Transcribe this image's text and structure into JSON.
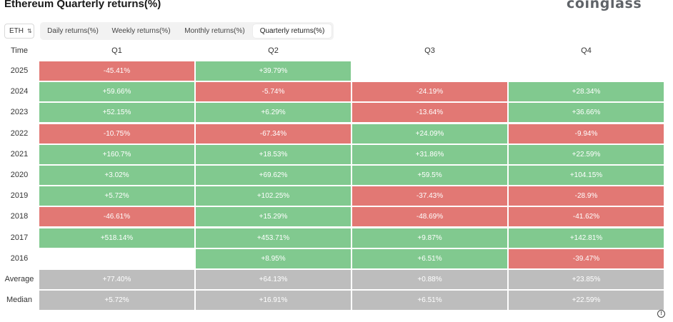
{
  "header": {
    "title": "Ethereum Quarterly returns(%)",
    "logo": "coinglass"
  },
  "controls": {
    "coin": "ETH",
    "tabs": [
      {
        "label": "Daily returns(%)",
        "active": false
      },
      {
        "label": "Weekly returns(%)",
        "active": false
      },
      {
        "label": "Monthly returns(%)",
        "active": false
      },
      {
        "label": "Quarterly returns(%)",
        "active": true
      }
    ]
  },
  "colors": {
    "positive": "#81c98f",
    "negative": "#e27874",
    "summary": "#bdbdbd"
  },
  "chart_data": {
    "type": "heatmap",
    "corner_label": "Time",
    "columns": [
      "Q1",
      "Q2",
      "Q3",
      "Q4"
    ],
    "rows": [
      {
        "label": "2025",
        "values": [
          "-45.41%",
          "+39.79%",
          "",
          ""
        ]
      },
      {
        "label": "2024",
        "values": [
          "+59.66%",
          "-5.74%",
          "-24.19%",
          "+28.34%"
        ]
      },
      {
        "label": "2023",
        "values": [
          "+52.15%",
          "+6.29%",
          "-13.64%",
          "+36.66%"
        ]
      },
      {
        "label": "2022",
        "values": [
          "-10.75%",
          "-67.34%",
          "+24.09%",
          "-9.94%"
        ]
      },
      {
        "label": "2021",
        "values": [
          "+160.7%",
          "+18.53%",
          "+31.86%",
          "+22.59%"
        ]
      },
      {
        "label": "2020",
        "values": [
          "+3.02%",
          "+69.62%",
          "+59.5%",
          "+104.15%"
        ]
      },
      {
        "label": "2019",
        "values": [
          "+5.72%",
          "+102.25%",
          "-37.43%",
          "-28.9%"
        ]
      },
      {
        "label": "2018",
        "values": [
          "-46.61%",
          "+15.29%",
          "-48.69%",
          "-41.62%"
        ]
      },
      {
        "label": "2017",
        "values": [
          "+518.14%",
          "+453.71%",
          "+9.87%",
          "+142.81%"
        ]
      },
      {
        "label": "2016",
        "values": [
          "",
          "+8.95%",
          "+6.51%",
          "-39.47%"
        ]
      }
    ],
    "summary_rows": [
      {
        "label": "Average",
        "values": [
          "+77.40%",
          "+64.13%",
          "+0.88%",
          "+23.85%"
        ]
      },
      {
        "label": "Median",
        "values": [
          "+5.72%",
          "+16.91%",
          "+6.51%",
          "+22.59%"
        ]
      }
    ]
  }
}
